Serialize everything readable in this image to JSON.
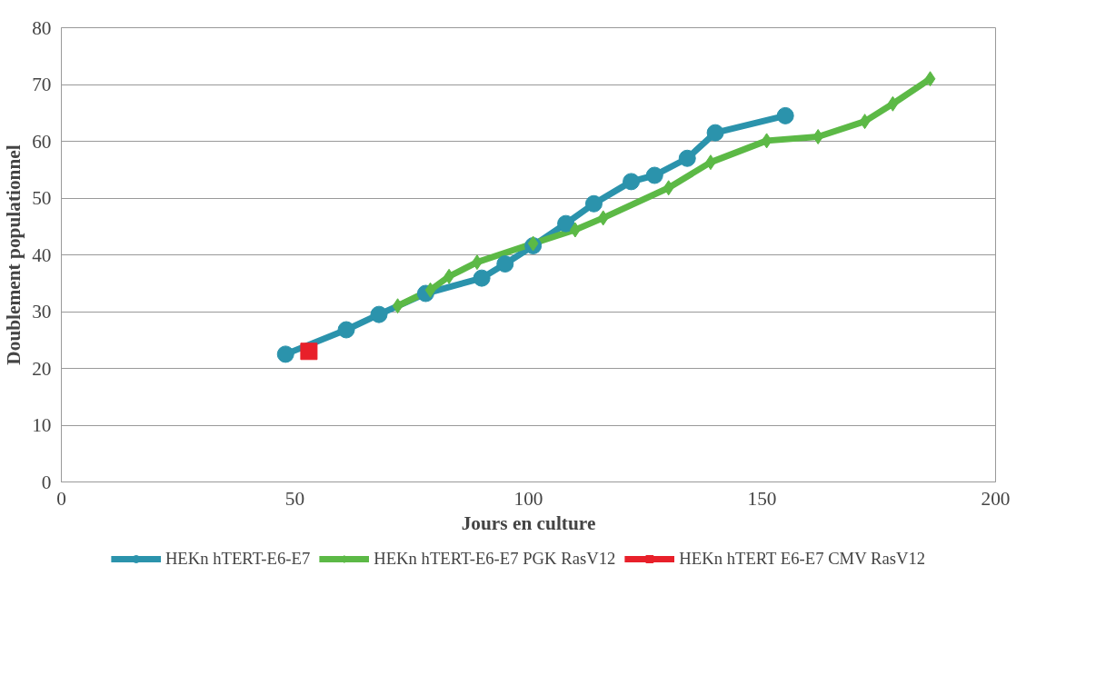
{
  "chart_data": {
    "type": "line",
    "xlabel": "Jours en culture",
    "ylabel": "Doublement populationnel",
    "xlim": [
      0,
      200
    ],
    "xticks": [
      0,
      50,
      100,
      150,
      200
    ],
    "ylim": [
      0,
      80
    ],
    "yticks": [
      0,
      10,
      20,
      30,
      40,
      50,
      60,
      70,
      80
    ],
    "grid": "y",
    "legend": "bottom",
    "series": [
      {
        "name": "HEKn hTERT-E6-E7",
        "color": "#2b93ac",
        "marker": "circle",
        "x": [
          48,
          61,
          68,
          78,
          90,
          95,
          101,
          108,
          114,
          122,
          127,
          134,
          140,
          155
        ],
        "values": [
          22.5,
          26.8,
          29.5,
          33.2,
          35.9,
          38.4,
          41.6,
          45.5,
          49,
          52.9,
          54,
          57,
          61.5,
          64.5
        ]
      },
      {
        "name": "HEKn hTERT-E6-E7 PGK RasV12",
        "color": "#5cb946",
        "marker": "diamond",
        "x": [
          72,
          79,
          83,
          89,
          101,
          110,
          116,
          130,
          139,
          151,
          162,
          172,
          178,
          186
        ],
        "values": [
          31,
          33.8,
          36.2,
          38.7,
          42,
          44.4,
          46.5,
          51.8,
          56.3,
          60.1,
          60.8,
          63.5,
          66.6,
          71
        ]
      },
      {
        "name": "HEKn hTERT E6-E7 CMV RasV12",
        "color": "#e8202a",
        "marker": "square",
        "x": [
          53
        ],
        "values": [
          23
        ]
      }
    ]
  }
}
